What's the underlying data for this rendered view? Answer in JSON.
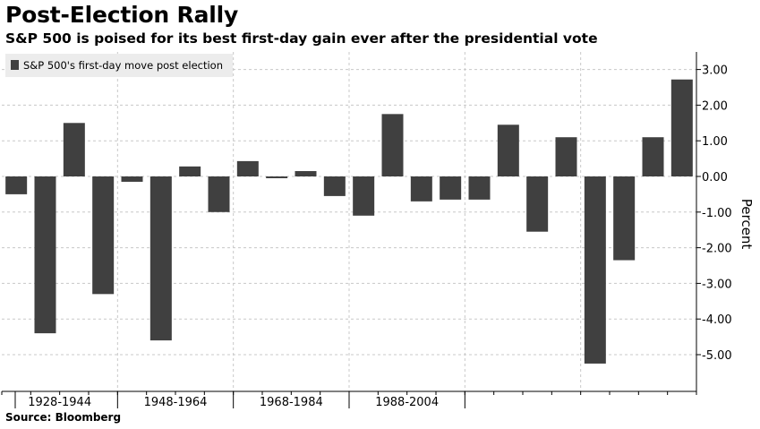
{
  "header": {
    "title": "Post-Election Rally",
    "subtitle": "S&P 500 is poised for its best first-day gain ever after the presidential vote"
  },
  "footer": {
    "source": "Source: Bloomberg"
  },
  "colors": {
    "bar": "#404040",
    "grid": "#c8c8c8",
    "axis": "#000000",
    "legend_bg": "#ececec"
  },
  "chart_data": {
    "type": "bar",
    "values": [
      -0.5,
      -4.4,
      1.5,
      -3.3,
      -0.15,
      -4.6,
      0.28,
      -1.0,
      0.43,
      -0.05,
      0.15,
      -0.55,
      -1.1,
      1.75,
      -0.7,
      -0.65,
      -0.65,
      1.45,
      -1.55,
      1.1,
      -5.25,
      -2.35,
      1.1,
      2.72
    ],
    "series": [
      {
        "name": "S&P 500's first-day move post election"
      }
    ],
    "x_group_labels": [
      "1928-1944",
      "1948-1964",
      "1968-1984",
      "1988-2004"
    ],
    "ylabel": "Percent",
    "ylim": [
      -6,
      3.5
    ],
    "yticks": [
      3.0,
      2.0,
      1.0,
      0.0,
      -1.0,
      -2.0,
      -3.0,
      -4.0,
      -5.0
    ],
    "ytick_labels": [
      "3.00",
      "2.00",
      "1.00",
      "0.00",
      "-1.00",
      "-2.00",
      "-3.00",
      "-4.00",
      "-5.00"
    ],
    "grid": true,
    "legend": "top-left"
  }
}
